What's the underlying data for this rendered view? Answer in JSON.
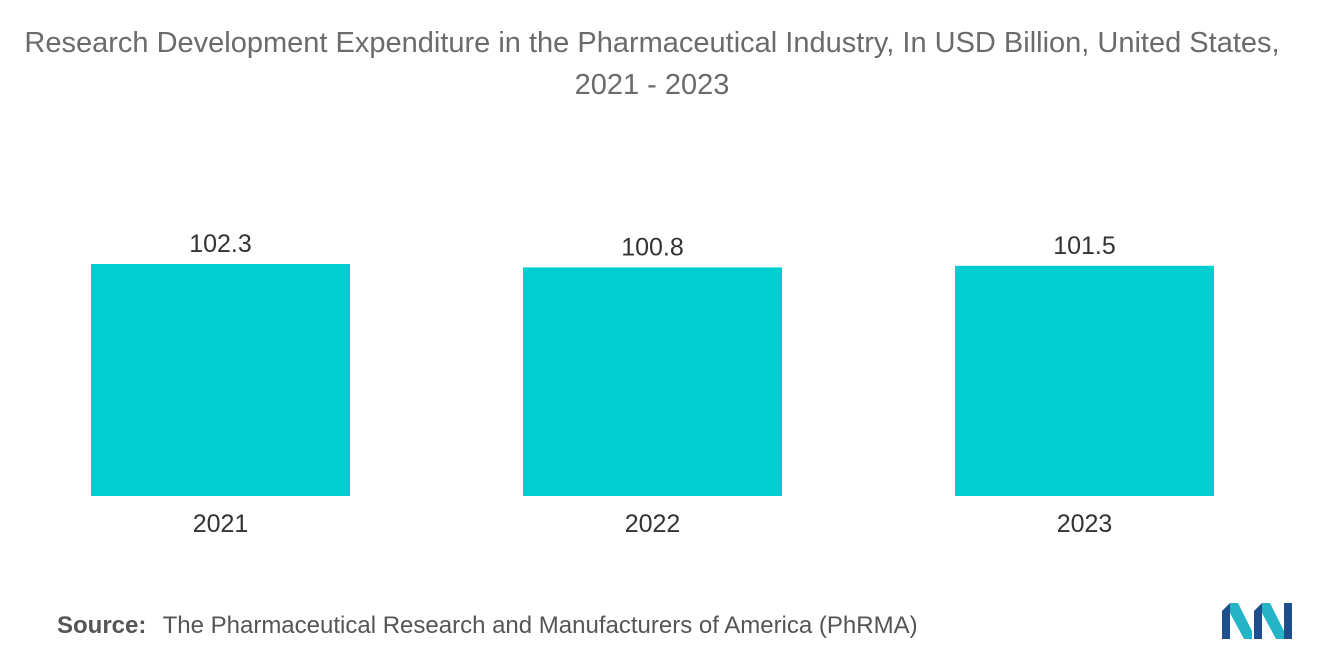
{
  "chart_data": {
    "type": "bar",
    "title": "Research Development Expenditure in the Pharmaceutical Industry, In USD Billion, United States, 2021 - 2023",
    "categories": [
      "2021",
      "2022",
      "2023"
    ],
    "values": [
      102.3,
      100.8,
      101.5
    ],
    "value_labels": [
      "102.3",
      "100.8",
      "101.5"
    ],
    "xlabel": "",
    "ylabel": "",
    "ylim": [
      0,
      102.3
    ],
    "grid": false,
    "legend": "none",
    "bar_color": "#00ced1"
  },
  "source": {
    "label": "Source:",
    "text": "The Pharmaceutical Research and Manufacturers of America (PhRMA)"
  },
  "logo": {
    "icon": "mordor-intelligence-logo-icon",
    "colors": [
      "#1e4f8c",
      "#23b5c6"
    ]
  }
}
